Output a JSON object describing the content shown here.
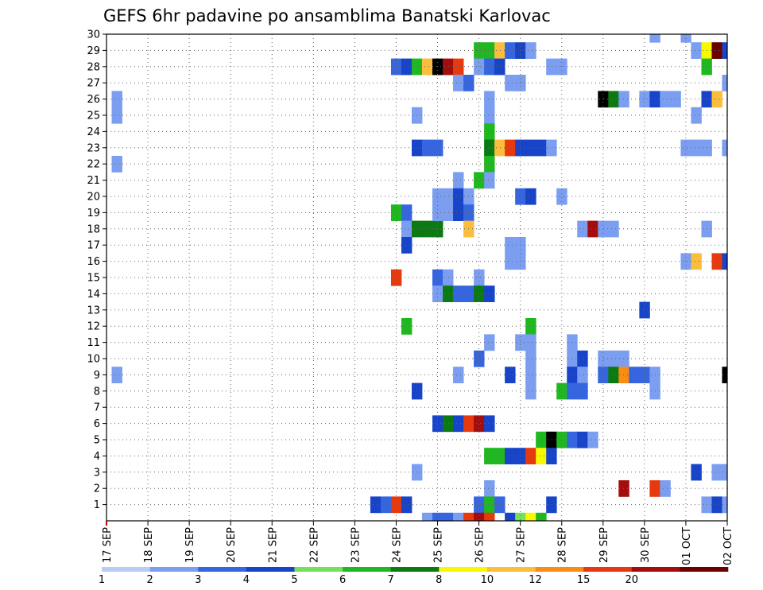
{
  "chart_data": {
    "type": "heatmap",
    "title": "GEFS 6hr padavine po ansamblima Banatski Karlovac",
    "xlabel": "",
    "ylabel": "",
    "x_tick_labels": [
      "17 SEP",
      "18 SEP",
      "19 SEP",
      "20 SEP",
      "21 SEP",
      "22 SEP",
      "23 SEP",
      "24 SEP",
      "25 SEP",
      "26 SEP",
      "27 SEP",
      "28 SEP",
      "29 SEP",
      "30 SEP",
      "01 OCT",
      "02 OCT"
    ],
    "x_unit": "6-hour step (4 per day), step 0 = 17 SEP 00 UTC",
    "xlim": [
      0,
      60
    ],
    "y_tick_labels": [
      "1",
      "2",
      "3",
      "4",
      "5",
      "6",
      "7",
      "8",
      "9",
      "10",
      "11",
      "12",
      "13",
      "14",
      "15",
      "16",
      "17",
      "18",
      "19",
      "20",
      "21",
      "22",
      "23",
      "24",
      "25",
      "26",
      "27",
      "28",
      "29",
      "30"
    ],
    "ylim": [
      0,
      30
    ],
    "grid": true,
    "colorbar": {
      "placement": "bottom",
      "bounds": [
        "1",
        "2",
        "3",
        "4",
        "5",
        "6",
        "7",
        "8",
        "10",
        "12",
        "15",
        "20"
      ],
      "colors": [
        "#b8cdf6",
        "#7b9ef0",
        "#3566e0",
        "#1744c8",
        "#74e05c",
        "#1fb81f",
        "#0b7a12",
        "#f8f800",
        "#fbbd3c",
        "#f98c12",
        "#e63a0e",
        "#a50c0c",
        "#6b0000"
      ]
    },
    "cells": [
      [
        1,
        26,
        1
      ],
      [
        1,
        25,
        1
      ],
      [
        1,
        22,
        1
      ],
      [
        1,
        9,
        1
      ],
      [
        26,
        1,
        3
      ],
      [
        27,
        1,
        2
      ],
      [
        28,
        28,
        2
      ],
      [
        28,
        19,
        5
      ],
      [
        28,
        15,
        10
      ],
      [
        28,
        1,
        10
      ],
      [
        29,
        28,
        3
      ],
      [
        29,
        19,
        2
      ],
      [
        29,
        18,
        1
      ],
      [
        29,
        17,
        3
      ],
      [
        29,
        12,
        5
      ],
      [
        29,
        1,
        3
      ],
      [
        30,
        28,
        5
      ],
      [
        30,
        18,
        6
      ],
      [
        30,
        25,
        1
      ],
      [
        30,
        23,
        3
      ],
      [
        30,
        8,
        3
      ],
      [
        30,
        3,
        1
      ],
      [
        31,
        28,
        8
      ],
      [
        31,
        18,
        6
      ],
      [
        31,
        23,
        2
      ],
      [
        31,
        0,
        1
      ],
      [
        32,
        28,
        13
      ],
      [
        32,
        18,
        6
      ],
      [
        32,
        23,
        2
      ],
      [
        32,
        20,
        1
      ],
      [
        32,
        19,
        1
      ],
      [
        32,
        15,
        2
      ],
      [
        32,
        14,
        1
      ],
      [
        32,
        6,
        3
      ],
      [
        32,
        0,
        2
      ],
      [
        33,
        28,
        11
      ],
      [
        33,
        20,
        1
      ],
      [
        33,
        19,
        1
      ],
      [
        33,
        15,
        1
      ],
      [
        33,
        14,
        6
      ],
      [
        33,
        6,
        6
      ],
      [
        33,
        0,
        2
      ],
      [
        34,
        28,
        10
      ],
      [
        34,
        27,
        1
      ],
      [
        34,
        21,
        1
      ],
      [
        34,
        20,
        3
      ],
      [
        34,
        19,
        3
      ],
      [
        34,
        14,
        2
      ],
      [
        34,
        9,
        1
      ],
      [
        34,
        6,
        3
      ],
      [
        34,
        0,
        1
      ],
      [
        35,
        27,
        2
      ],
      [
        35,
        20,
        1
      ],
      [
        35,
        19,
        2
      ],
      [
        35,
        18,
        8
      ],
      [
        35,
        14,
        2
      ],
      [
        35,
        6,
        10
      ],
      [
        35,
        0,
        10
      ],
      [
        36,
        29,
        5
      ],
      [
        36,
        28,
        1
      ],
      [
        36,
        21,
        5
      ],
      [
        36,
        15,
        1
      ],
      [
        36,
        14,
        6
      ],
      [
        36,
        10,
        2
      ],
      [
        36,
        6,
        11
      ],
      [
        36,
        1,
        2
      ],
      [
        36,
        0,
        11
      ],
      [
        37,
        29,
        5
      ],
      [
        37,
        28,
        2
      ],
      [
        37,
        26,
        1
      ],
      [
        37,
        25,
        1
      ],
      [
        37,
        24,
        5
      ],
      [
        37,
        23,
        6
      ],
      [
        37,
        22,
        5
      ],
      [
        37,
        21,
        1
      ],
      [
        37,
        14,
        3
      ],
      [
        37,
        11,
        1
      ],
      [
        37,
        6,
        3
      ],
      [
        37,
        4,
        5
      ],
      [
        37,
        2,
        1
      ],
      [
        37,
        1,
        5
      ],
      [
        37,
        0,
        10
      ],
      [
        38,
        29,
        8
      ],
      [
        38,
        28,
        3
      ],
      [
        38,
        23,
        8
      ],
      [
        38,
        4,
        5
      ],
      [
        38,
        1,
        2
      ],
      [
        39,
        29,
        2
      ],
      [
        39,
        27,
        1
      ],
      [
        39,
        23,
        10
      ],
      [
        39,
        17,
        1
      ],
      [
        39,
        16,
        1
      ],
      [
        39,
        9,
        3
      ],
      [
        39,
        4,
        3
      ],
      [
        39,
        0,
        3
      ],
      [
        40,
        29,
        3
      ],
      [
        40,
        27,
        1
      ],
      [
        40,
        23,
        3
      ],
      [
        40,
        20,
        2
      ],
      [
        40,
        17,
        1
      ],
      [
        40,
        16,
        1
      ],
      [
        40,
        11,
        1
      ],
      [
        40,
        4,
        3
      ],
      [
        40,
        0,
        4
      ],
      [
        41,
        29,
        1
      ],
      [
        41,
        23,
        3
      ],
      [
        41,
        20,
        3
      ],
      [
        41,
        12,
        5
      ],
      [
        41,
        11,
        1
      ],
      [
        41,
        10,
        1
      ],
      [
        41,
        9,
        1
      ],
      [
        41,
        8,
        1
      ],
      [
        41,
        4,
        10
      ],
      [
        41,
        0,
        7
      ],
      [
        42,
        23,
        3
      ],
      [
        42,
        5,
        5
      ],
      [
        42,
        4,
        7
      ],
      [
        42,
        0,
        5
      ],
      [
        43,
        28,
        1
      ],
      [
        43,
        23,
        1
      ],
      [
        43,
        5,
        13
      ],
      [
        43,
        4,
        3
      ],
      [
        43,
        1,
        3
      ],
      [
        44,
        28,
        1
      ],
      [
        44,
        20,
        1
      ],
      [
        44,
        8,
        5
      ],
      [
        44,
        5,
        5
      ],
      [
        45,
        11,
        1
      ],
      [
        45,
        10,
        1
      ],
      [
        45,
        9,
        3
      ],
      [
        45,
        8,
        2
      ],
      [
        45,
        5,
        2
      ],
      [
        46,
        18,
        1
      ],
      [
        46,
        10,
        3
      ],
      [
        46,
        9,
        1
      ],
      [
        46,
        8,
        2
      ],
      [
        46,
        5,
        3
      ],
      [
        47,
        18,
        11
      ],
      [
        47,
        5,
        1
      ],
      [
        48,
        26,
        13
      ],
      [
        48,
        18,
        1
      ],
      [
        48,
        10,
        1
      ],
      [
        48,
        9,
        2
      ],
      [
        49,
        26,
        6
      ],
      [
        49,
        18,
        1
      ],
      [
        49,
        10,
        1
      ],
      [
        49,
        9,
        6
      ],
      [
        50,
        26,
        1
      ],
      [
        50,
        10,
        1
      ],
      [
        50,
        9,
        9
      ],
      [
        50,
        2,
        11
      ],
      [
        51,
        9,
        2
      ],
      [
        52,
        26,
        1
      ],
      [
        52,
        13,
        3
      ],
      [
        52,
        9,
        2
      ],
      [
        53,
        30,
        1
      ],
      [
        53,
        26,
        3
      ],
      [
        53,
        9,
        1
      ],
      [
        53,
        8,
        1
      ],
      [
        53,
        2,
        10
      ],
      [
        54,
        26,
        1
      ],
      [
        54,
        2,
        1
      ],
      [
        55,
        26,
        1
      ],
      [
        56,
        30,
        1
      ],
      [
        56,
        23,
        1
      ],
      [
        56,
        16,
        1
      ],
      [
        57,
        29,
        1
      ],
      [
        57,
        25,
        1
      ],
      [
        57,
        23,
        1
      ],
      [
        57,
        16,
        8
      ],
      [
        57,
        3,
        3
      ],
      [
        58,
        29,
        7
      ],
      [
        58,
        28,
        5
      ],
      [
        58,
        26,
        3
      ],
      [
        58,
        23,
        1
      ],
      [
        58,
        18,
        1
      ],
      [
        58,
        1,
        1
      ],
      [
        59,
        29,
        12
      ],
      [
        59,
        26,
        8
      ],
      [
        59,
        16,
        10
      ],
      [
        59,
        3,
        1
      ],
      [
        59,
        1,
        3
      ],
      [
        60,
        29,
        3
      ],
      [
        60,
        27,
        1
      ],
      [
        60,
        23,
        1
      ],
      [
        60,
        16,
        3
      ],
      [
        60,
        9,
        13
      ],
      [
        60,
        3,
        1
      ],
      [
        60,
        1,
        1
      ],
      [
        61,
        30,
        1
      ],
      [
        61,
        25,
        1
      ],
      [
        61,
        16,
        13
      ],
      [
        61,
        9,
        3
      ],
      [
        61,
        8,
        12
      ],
      [
        61,
        1,
        3
      ]
    ]
  }
}
